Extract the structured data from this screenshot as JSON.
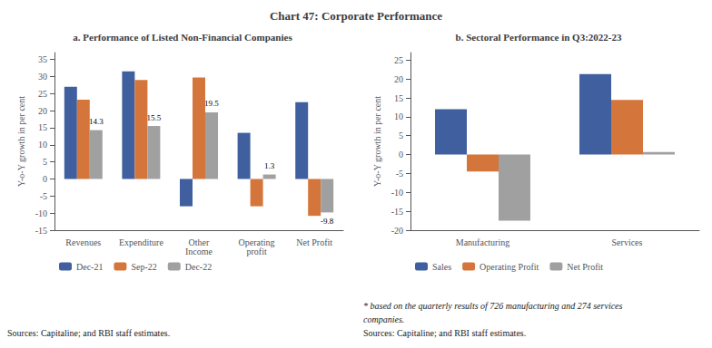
{
  "title": "Chart 47: Corporate Performance",
  "chart_data": [
    {
      "type": "bar",
      "title": "a. Performance of Listed Non-Financial Companies",
      "categories": [
        "Revenues",
        "Expenditure",
        "Other\nIncome",
        "Operating\nprofit",
        "Net Profit"
      ],
      "series": [
        {
          "name": "Dec-21",
          "color": "#3f5f9f",
          "values": [
            27.0,
            31.5,
            -8.0,
            13.5,
            22.5
          ]
        },
        {
          "name": "Sep-22",
          "color": "#d4763b",
          "values": [
            23.2,
            29.0,
            29.7,
            -8.0,
            -10.8
          ]
        },
        {
          "name": "Dec-22",
          "color": "#a0a0a0",
          "values": [
            14.3,
            15.5,
            19.5,
            1.3,
            -9.8
          ],
          "data_labels": true
        }
      ],
      "ylabel": "Y-o-Y growth in per cent",
      "ylim": [
        -15,
        37
      ],
      "yticks": [
        -15,
        -10,
        -5,
        0,
        5,
        10,
        15,
        20,
        25,
        30,
        35
      ],
      "grid": false,
      "legend": "bottom",
      "annotations": [
        "Sources: Capitaline; and RBI staff estimates."
      ]
    },
    {
      "type": "bar",
      "title": "b. Sectoral Performance in Q3:2022-23",
      "categories": [
        "Manufacturing",
        "Services"
      ],
      "series": [
        {
          "name": "Sales",
          "color": "#3f5f9f",
          "values": [
            12.0,
            21.3
          ]
        },
        {
          "name": "Operating Profit",
          "color": "#d4763b",
          "values": [
            -4.5,
            14.5
          ]
        },
        {
          "name": "Net Profit",
          "color": "#a0a0a0",
          "values": [
            -17.5,
            0.7
          ]
        }
      ],
      "ylabel": "Y-o-Y growth in per cent",
      "ylim": [
        -20,
        27
      ],
      "yticks": [
        -20,
        -15,
        -10,
        -5,
        0,
        5,
        10,
        15,
        20,
        25
      ],
      "grid": false,
      "legend": "bottom",
      "annotations": [
        "* based on the quarterly results of 726 manufacturing and 274 services",
        "companies.",
        "Sources: Capitaline; and RBI staff estimates."
      ]
    }
  ]
}
